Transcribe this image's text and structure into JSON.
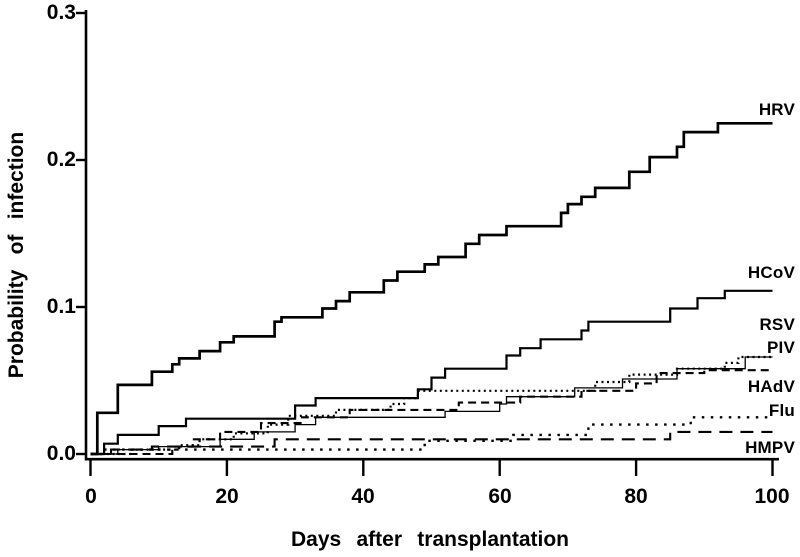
{
  "chart_data": {
    "type": "line",
    "subtype": "step-cumulative-incidence",
    "title": "",
    "xlabel": "Days after transplantation",
    "ylabel": "Probability of infection",
    "xlim": [
      0,
      100
    ],
    "ylim": [
      0.0,
      0.3
    ],
    "x_ticks": [
      0,
      20,
      40,
      60,
      80,
      100
    ],
    "y_ticks": [
      0.0,
      0.1,
      0.2,
      0.3
    ],
    "x_tick_labels": [
      "0",
      "20",
      "40",
      "60",
      "80",
      "100"
    ],
    "y_tick_labels": [
      "0.0",
      "0.1",
      "0.2",
      "0.3"
    ],
    "grid": false,
    "legend_position": "labels-at-right-end-of-curves",
    "background": "#ffffff",
    "line_color": "#000000",
    "series": [
      {
        "name": "HRV",
        "style": "solid-thick",
        "final_value": 0.225,
        "points": [
          [
            1,
            0.028
          ],
          [
            4,
            0.047
          ],
          [
            9,
            0.056
          ],
          [
            12,
            0.061
          ],
          [
            13,
            0.065
          ],
          [
            16,
            0.07
          ],
          [
            19,
            0.076
          ],
          [
            21,
            0.08
          ],
          [
            27,
            0.09
          ],
          [
            28,
            0.093
          ],
          [
            34,
            0.099
          ],
          [
            36,
            0.104
          ],
          [
            38,
            0.11
          ],
          [
            43,
            0.118
          ],
          [
            45,
            0.124
          ],
          [
            49,
            0.129
          ],
          [
            51,
            0.134
          ],
          [
            55,
            0.143
          ],
          [
            57,
            0.149
          ],
          [
            61,
            0.155
          ],
          [
            69,
            0.164
          ],
          [
            70,
            0.17
          ],
          [
            72,
            0.175
          ],
          [
            74,
            0.181
          ],
          [
            79,
            0.192
          ],
          [
            82,
            0.202
          ],
          [
            86,
            0.209
          ],
          [
            87,
            0.219
          ],
          [
            92,
            0.225
          ]
        ]
      },
      {
        "name": "HCoV",
        "style": "solid",
        "final_value": 0.111,
        "points": [
          [
            2,
            0.007
          ],
          [
            4,
            0.013
          ],
          [
            10,
            0.019
          ],
          [
            14,
            0.024
          ],
          [
            30,
            0.033
          ],
          [
            33,
            0.038
          ],
          [
            48,
            0.044
          ],
          [
            50,
            0.052
          ],
          [
            52,
            0.058
          ],
          [
            61,
            0.067
          ],
          [
            63,
            0.072
          ],
          [
            66,
            0.078
          ],
          [
            72,
            0.084
          ],
          [
            73,
            0.09
          ],
          [
            85,
            0.099
          ],
          [
            89,
            0.106
          ],
          [
            93,
            0.111
          ]
        ]
      },
      {
        "name": "RSV",
        "style": "solid-thin",
        "final_value": 0.066,
        "points": [
          [
            4,
            0.003
          ],
          [
            10,
            0.005
          ],
          [
            19,
            0.01
          ],
          [
            24,
            0.015
          ],
          [
            30,
            0.02
          ],
          [
            33,
            0.025
          ],
          [
            52,
            0.029
          ],
          [
            60,
            0.034
          ],
          [
            61,
            0.039
          ],
          [
            71,
            0.045
          ],
          [
            78,
            0.051
          ],
          [
            86,
            0.058
          ],
          [
            96,
            0.066
          ]
        ]
      },
      {
        "name": "PIV",
        "style": "dotted-fine",
        "final_value": 0.066,
        "points": [
          [
            6,
            0.003
          ],
          [
            13,
            0.006
          ],
          [
            16,
            0.01
          ],
          [
            21,
            0.014
          ],
          [
            26,
            0.02
          ],
          [
            29,
            0.026
          ],
          [
            36,
            0.03
          ],
          [
            44,
            0.034
          ],
          [
            46,
            0.038
          ],
          [
            48,
            0.043
          ],
          [
            74,
            0.049
          ],
          [
            79,
            0.054
          ],
          [
            86,
            0.058
          ],
          [
            93,
            0.062
          ],
          [
            95,
            0.066
          ]
        ]
      },
      {
        "name": "HAdV",
        "style": "dashed",
        "final_value": 0.057,
        "points": [
          [
            12,
            0.005
          ],
          [
            15,
            0.01
          ],
          [
            19,
            0.015
          ],
          [
            25,
            0.021
          ],
          [
            31,
            0.025
          ],
          [
            38,
            0.03
          ],
          [
            54,
            0.035
          ],
          [
            63,
            0.039
          ],
          [
            72,
            0.043
          ],
          [
            80,
            0.048
          ],
          [
            83,
            0.055
          ],
          [
            90,
            0.057
          ]
        ]
      },
      {
        "name": "Flu",
        "style": "dotted-sparse",
        "final_value": 0.025,
        "points": [
          [
            2,
            0.003
          ],
          [
            49,
            0.009
          ],
          [
            62,
            0.013
          ],
          [
            73,
            0.02
          ],
          [
            88,
            0.025
          ]
        ]
      },
      {
        "name": "HMPV",
        "style": "long-dash",
        "final_value": 0.015,
        "points": [
          [
            3,
            0.003
          ],
          [
            9,
            0.005
          ],
          [
            27,
            0.01
          ],
          [
            85,
            0.015
          ]
        ]
      }
    ]
  }
}
